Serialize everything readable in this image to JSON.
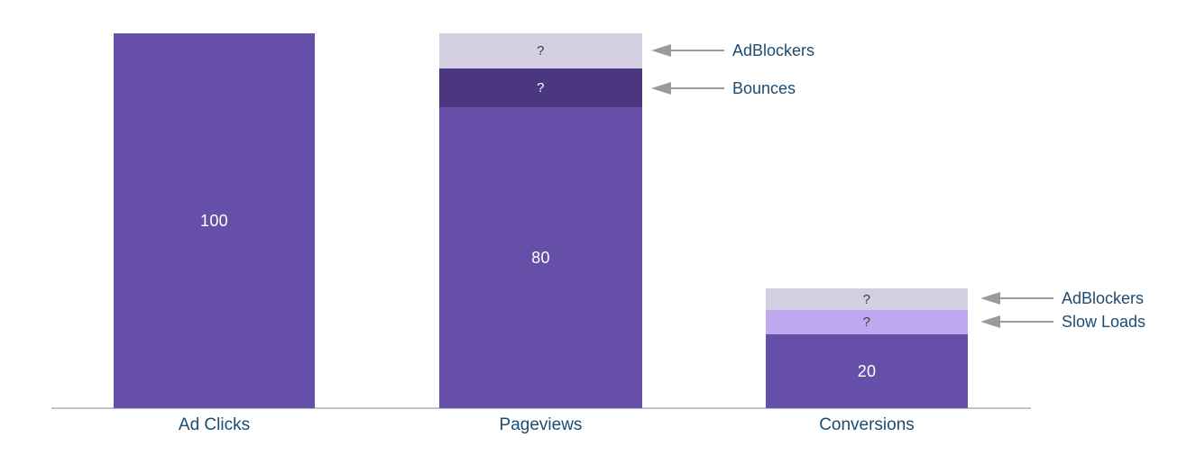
{
  "chart_data": {
    "type": "bar",
    "subtype": "stacked-funnel",
    "title": "",
    "xlabel": "",
    "ylabel": "",
    "ylim": [
      0,
      100
    ],
    "grid": false,
    "legend": "none",
    "categories": [
      "Ad Clicks",
      "Pageviews",
      "Conversions"
    ],
    "bars": [
      {
        "category": "Ad Clicks",
        "segments": [
          {
            "name": "base",
            "label": "100",
            "value": 100,
            "color": "#654FA8"
          }
        ]
      },
      {
        "category": "Pageviews",
        "segments": [
          {
            "name": "AdBlockers",
            "label": "?",
            "value": null,
            "approx_value": 9,
            "color": "#D4CFE3"
          },
          {
            "name": "Bounces",
            "label": "?",
            "value": null,
            "approx_value": 10,
            "color": "#4A3780"
          },
          {
            "name": "base",
            "label": "80",
            "value": 80,
            "color": "#654FA8"
          }
        ]
      },
      {
        "category": "Conversions",
        "segments": [
          {
            "name": "AdBlockers",
            "label": "?",
            "value": null,
            "approx_value": 6,
            "color": "#D4CFE3"
          },
          {
            "name": "Slow Loads",
            "label": "?",
            "value": null,
            "approx_value": 6,
            "color": "#BFA9F0"
          },
          {
            "name": "base",
            "label": "20",
            "value": 20,
            "color": "#654FA8"
          }
        ]
      }
    ],
    "annotations": [
      {
        "text": "AdBlockers",
        "target": "Pageviews / AdBlockers segment"
      },
      {
        "text": "Bounces",
        "target": "Pageviews / Bounces segment"
      },
      {
        "text": "AdBlockers",
        "target": "Conversions / AdBlockers segment"
      },
      {
        "text": "Slow Loads",
        "target": "Conversions / Slow Loads segment"
      }
    ]
  },
  "colors": {
    "bar_main": "#654FA8",
    "bar_dark": "#4A3780",
    "bar_lavender": "#D4CFE3",
    "bar_lilac": "#BFA9F0",
    "value_text_light": "#FFFFFF",
    "value_text_dark": "#3A3A3A",
    "label_text": "#1D4C72",
    "arrow": "#9A9A9A",
    "axis_line": "#C3C2C8",
    "background": "#FFFFFF"
  }
}
